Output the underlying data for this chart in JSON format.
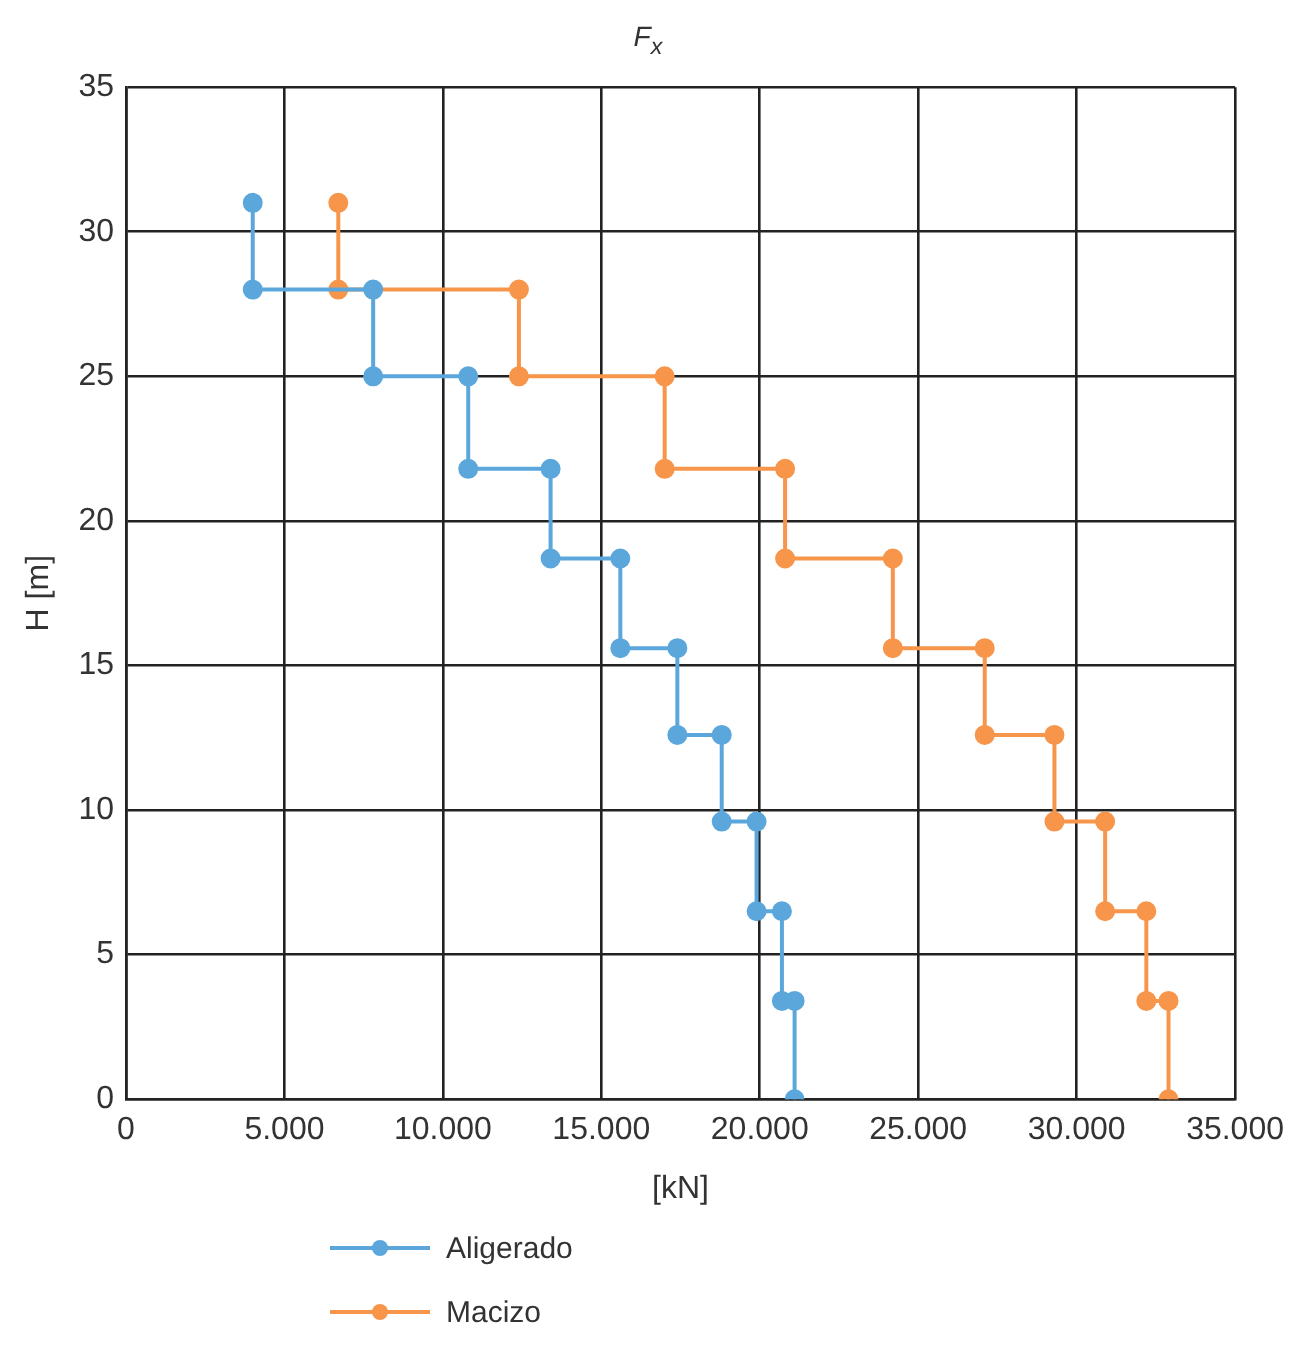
{
  "chart_data": {
    "type": "line",
    "title": "F$_{x}$",
    "xlabel": "[kN]",
    "ylabel": "H [m]",
    "xlim": [
      0,
      35000
    ],
    "xticks": [
      0,
      {
        "value": 5000,
        "label": "5.000"
      },
      {
        "value": 10000,
        "label": "10.000"
      },
      {
        "value": 15000,
        "label": "15.000"
      },
      {
        "value": 20000,
        "label": "20.000"
      },
      {
        "value": 25000,
        "label": "25.000"
      },
      {
        "value": 30000,
        "label": "30.000"
      },
      {
        "value": 35000,
        "label": "35.000"
      }
    ],
    "ylim": [
      0,
      35
    ],
    "yticks": [
      0,
      5,
      10,
      15,
      20,
      25,
      30,
      35
    ],
    "grid": true,
    "legend": "bottom",
    "marker": "circle",
    "line_style": "solid",
    "series": [
      {
        "name": "Aligerado",
        "color": "#5ba7dc",
        "x": [
          4000,
          4000,
          7800,
          7800,
          10800,
          10800,
          13400,
          13400,
          15600,
          15600,
          17400,
          17400,
          18800,
          18800,
          19900,
          19900,
          20700,
          20700,
          21100,
          21100
        ],
        "values": [
          31,
          28,
          28,
          25,
          25,
          21.8,
          21.8,
          18.7,
          18.7,
          15.6,
          15.6,
          12.6,
          12.6,
          9.6,
          9.6,
          6.5,
          6.5,
          3.4,
          3.4,
          0
        ]
      },
      {
        "name": "Macizo",
        "color": "#f7964a",
        "x": [
          6700,
          6700,
          12400,
          12400,
          17000,
          17000,
          20800,
          20800,
          24200,
          24200,
          27100,
          27100,
          29300,
          29300,
          30900,
          30900,
          32200,
          32200,
          32900,
          32900
        ],
        "values": [
          31,
          28,
          28,
          25,
          25,
          21.8,
          21.8,
          18.7,
          18.7,
          15.6,
          15.6,
          12.6,
          12.6,
          9.6,
          9.6,
          6.5,
          6.5,
          3.4,
          3.4,
          0
        ]
      }
    ]
  }
}
